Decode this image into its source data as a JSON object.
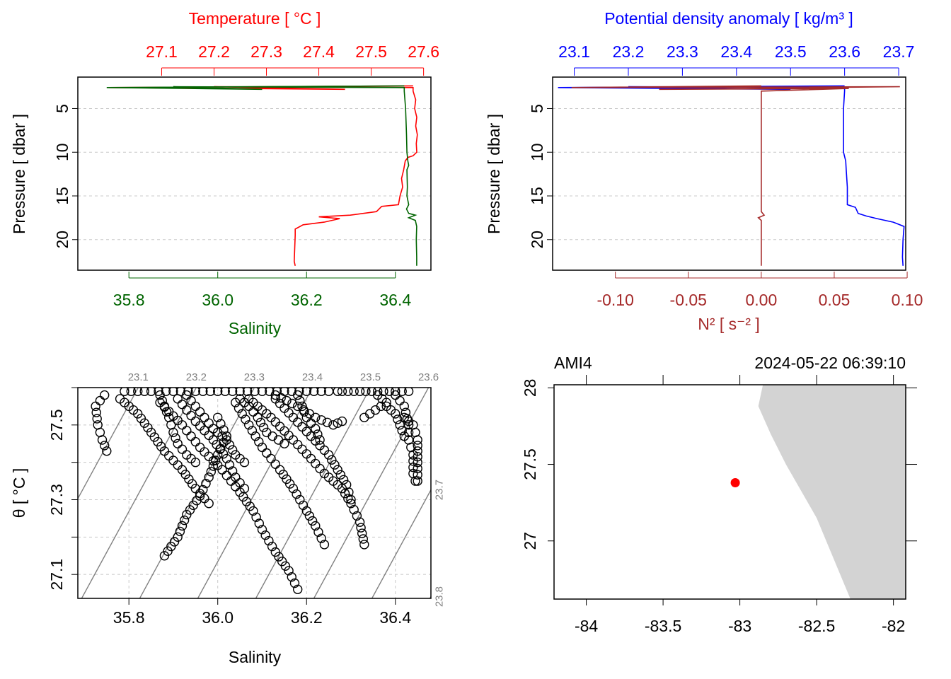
{
  "colors": {
    "temperature": "#ff0000",
    "salinity": "#006400",
    "density": "#0000ff",
    "n2": "#a52a2a",
    "grid": "#c8c8c8",
    "isopycnal": "#808080",
    "land": "#d3d3d3",
    "station": "#ff0000"
  },
  "chart_data": [
    {
      "id": "profile-ts",
      "type": "line",
      "title": "Temperature [ °C ]",
      "xlabel": "Salinity",
      "ylabel": "Pressure [ dbar ]",
      "ylim": [
        23.5,
        1.4
      ],
      "y_ticks": [
        "5",
        "10",
        "15",
        "20"
      ],
      "top_axis": {
        "label": "Temperature [ °C ]",
        "range": [
          26.94,
          27.614
        ],
        "ticks": [
          27.1,
          27.2,
          27.3,
          27.4,
          27.5,
          27.6
        ],
        "tick_labels": [
          "27.1",
          "27.2",
          "27.3",
          "27.4",
          "27.5",
          "27.6"
        ]
      },
      "bottom_axis": {
        "label": "Salinity",
        "range": [
          35.685,
          36.48
        ],
        "ticks": [
          35.8,
          36.0,
          36.2,
          36.4
        ],
        "tick_labels": [
          "35.8",
          "36.0",
          "36.2",
          "36.4"
        ]
      },
      "series": [
        {
          "name": "Temperature",
          "axis": "top",
          "color_key": "temperature",
          "points": [
            [
              27.58,
              2.4
            ],
            [
              27.0,
              2.6
            ],
            [
              27.45,
              2.8
            ],
            [
              27.2,
              2.5
            ],
            [
              27.58,
              2.6
            ],
            [
              27.58,
              3
            ],
            [
              27.585,
              4
            ],
            [
              27.583,
              5
            ],
            [
              27.587,
              6
            ],
            [
              27.585,
              7
            ],
            [
              27.588,
              8
            ],
            [
              27.586,
              9
            ],
            [
              27.587,
              10
            ],
            [
              27.58,
              10.4
            ],
            [
              27.57,
              10.6
            ],
            [
              27.565,
              11
            ],
            [
              27.562,
              12
            ],
            [
              27.558,
              13
            ],
            [
              27.56,
              14
            ],
            [
              27.555,
              15
            ],
            [
              27.552,
              16
            ],
            [
              27.52,
              16.2
            ],
            [
              27.51,
              16.8
            ],
            [
              27.46,
              17.2
            ],
            [
              27.4,
              17.4
            ],
            [
              27.44,
              17.6
            ],
            [
              27.41,
              18
            ],
            [
              27.37,
              18.3
            ],
            [
              27.355,
              18.8
            ],
            [
              27.355,
              19.5
            ],
            [
              27.354,
              21
            ],
            [
              27.353,
              22.5
            ],
            [
              27.355,
              23
            ]
          ]
        },
        {
          "name": "Salinity",
          "axis": "bottom",
          "color_key": "salinity",
          "points": [
            [
              36.42,
              2.4
            ],
            [
              35.75,
              2.6
            ],
            [
              36.1,
              2.8
            ],
            [
              35.9,
              2.5
            ],
            [
              36.42,
              2.6
            ],
            [
              36.42,
              3
            ],
            [
              36.423,
              5
            ],
            [
              36.425,
              8
            ],
            [
              36.426,
              10
            ],
            [
              36.428,
              11
            ],
            [
              36.43,
              11.5
            ],
            [
              36.426,
              12
            ],
            [
              36.427,
              14
            ],
            [
              36.426,
              15
            ],
            [
              36.43,
              16
            ],
            [
              36.425,
              16.5
            ],
            [
              36.43,
              17
            ],
            [
              36.445,
              17.2
            ],
            [
              36.43,
              17.5
            ],
            [
              36.445,
              17.8
            ],
            [
              36.448,
              18.5
            ],
            [
              36.447,
              20
            ],
            [
              36.448,
              22
            ],
            [
              36.448,
              23
            ]
          ]
        }
      ]
    },
    {
      "id": "profile-density-n2",
      "type": "line",
      "title": "Potential density anomaly [ kg/m³ ]",
      "xlabel": "N² [ s⁻² ]",
      "ylabel": "Pressure [ dbar ]",
      "ylim": [
        23.5,
        1.4
      ],
      "y_ticks": [
        "5",
        "10",
        "15",
        "20"
      ],
      "top_axis": {
        "label": "Potential density anomaly [ kg/m³ ]",
        "range": [
          23.06,
          23.713
        ],
        "ticks": [
          23.1,
          23.2,
          23.3,
          23.4,
          23.5,
          23.6,
          23.7
        ],
        "tick_labels": [
          "23.1",
          "23.2",
          "23.3",
          "23.4",
          "23.5",
          "23.6",
          "23.7"
        ]
      },
      "bottom_axis": {
        "label": "N² [ s⁻² ]",
        "range": [
          -0.143,
          0.099
        ],
        "ticks": [
          -0.1,
          -0.05,
          0.0,
          0.05,
          0.1
        ],
        "tick_labels": [
          "-0.10",
          "-0.05",
          "0.00",
          "0.05",
          "0.10"
        ]
      },
      "series": [
        {
          "name": "Potential density anomaly",
          "axis": "top",
          "color_key": "density",
          "points": [
            [
              23.6,
              2.4
            ],
            [
              23.07,
              2.6
            ],
            [
              23.5,
              2.8
            ],
            [
              23.2,
              2.5
            ],
            [
              23.6,
              2.6
            ],
            [
              23.6,
              3
            ],
            [
              23.598,
              5
            ],
            [
              23.598,
              8
            ],
            [
              23.598,
              10
            ],
            [
              23.602,
              11
            ],
            [
              23.603,
              12
            ],
            [
              23.605,
              14
            ],
            [
              23.605,
              16
            ],
            [
              23.62,
              16.3
            ],
            [
              23.625,
              17
            ],
            [
              23.64,
              17.3
            ],
            [
              23.66,
              17.6
            ],
            [
              23.69,
              18
            ],
            [
              23.71,
              18.5
            ],
            [
              23.708,
              20
            ],
            [
              23.707,
              22
            ],
            [
              23.708,
              23
            ]
          ]
        },
        {
          "name": "N²",
          "axis": "bottom",
          "color_key": "n2",
          "points": [
            [
              0.0,
              2.4
            ],
            [
              -0.13,
              2.6
            ],
            [
              0.095,
              2.5
            ],
            [
              -0.07,
              2.8
            ],
            [
              0.06,
              2.7
            ],
            [
              0.0,
              3
            ],
            [
              0.0,
              10
            ],
            [
              0.0,
              16.8
            ],
            [
              0.002,
              17.2
            ],
            [
              -0.002,
              17.5
            ],
            [
              0.0,
              17.8
            ],
            [
              0.0,
              23
            ]
          ]
        }
      ]
    },
    {
      "id": "ts-diagram",
      "type": "scatter",
      "xlabel": "Salinity",
      "ylabel": "θ [ °C ]",
      "xlim": [
        35.685,
        36.48
      ],
      "ylim": [
        27.036,
        27.6
      ],
      "x_ticks": [
        35.8,
        36.0,
        36.2,
        36.4
      ],
      "x_tick_labels": [
        "35.8",
        "36.0",
        "36.2",
        "36.4"
      ],
      "y_ticks": [
        27.1,
        27.3,
        27.5
      ],
      "y_tick_labels": [
        "27.1",
        "27.3",
        "27.5"
      ],
      "isopycnals": [
        23.1,
        23.2,
        23.3,
        23.4,
        23.5,
        23.6,
        23.7,
        23.8
      ],
      "isopycnal_labels": [
        "23.1",
        "23.2",
        "23.3",
        "23.4",
        "23.5",
        "23.6",
        "23.7",
        "23.8"
      ],
      "point_paths": [
        [
          [
            35.745,
            27.58
          ],
          [
            35.725,
            27.55
          ],
          [
            35.73,
            27.5
          ],
          [
            35.74,
            27.46
          ],
          [
            35.75,
            27.43
          ]
        ],
        [
          [
            35.78,
            27.57
          ],
          [
            35.82,
            27.53
          ],
          [
            35.85,
            27.48
          ],
          [
            35.88,
            27.43
          ],
          [
            35.92,
            27.38
          ],
          [
            35.95,
            27.33
          ],
          [
            35.98,
            27.29
          ]
        ],
        [
          [
            35.87,
            27.56
          ],
          [
            35.92,
            27.5
          ],
          [
            35.96,
            27.44
          ],
          [
            36.01,
            27.38
          ],
          [
            36.05,
            27.32
          ],
          [
            36.08,
            27.27
          ],
          [
            36.1,
            27.22
          ],
          [
            36.13,
            27.16
          ],
          [
            36.16,
            27.11
          ],
          [
            36.18,
            27.06
          ]
        ],
        [
          [
            35.91,
            27.57
          ],
          [
            35.95,
            27.51
          ],
          [
            35.99,
            27.46
          ],
          [
            36.02,
            27.41
          ],
          [
            36.04,
            27.36
          ],
          [
            36.06,
            27.33
          ]
        ],
        [
          [
            36.04,
            27.56
          ],
          [
            36.07,
            27.5
          ],
          [
            36.1,
            27.44
          ],
          [
            36.14,
            27.38
          ],
          [
            36.17,
            27.33
          ],
          [
            36.2,
            27.27
          ],
          [
            36.22,
            27.23
          ],
          [
            36.24,
            27.18
          ]
        ],
        [
          [
            36.07,
            27.57
          ],
          [
            36.12,
            27.52
          ],
          [
            36.17,
            27.46
          ],
          [
            36.21,
            27.41
          ],
          [
            36.24,
            27.37
          ],
          [
            36.28,
            27.33
          ],
          [
            36.3,
            27.29
          ],
          [
            36.32,
            27.24
          ],
          [
            36.33,
            27.18
          ]
        ],
        [
          [
            36.13,
            27.57
          ],
          [
            36.17,
            27.52
          ],
          [
            36.21,
            27.47
          ],
          [
            36.25,
            27.42
          ],
          [
            36.27,
            27.38
          ],
          [
            36.29,
            27.34
          ],
          [
            36.3,
            27.3
          ]
        ],
        [
          [
            36.0,
            27.52
          ],
          [
            36.02,
            27.47
          ],
          [
            36.0,
            27.42
          ],
          [
            35.98,
            27.36
          ],
          [
            35.96,
            27.31
          ],
          [
            35.93,
            27.26
          ],
          [
            35.91,
            27.2
          ],
          [
            35.88,
            27.15
          ]
        ],
        [
          [
            36.4,
            27.58
          ],
          [
            36.42,
            27.55
          ],
          [
            36.43,
            27.5
          ],
          [
            36.43,
            27.46
          ],
          [
            36.44,
            27.42
          ],
          [
            36.44,
            27.37
          ],
          [
            36.445,
            27.35
          ]
        ],
        [
          [
            36.13,
            27.58
          ],
          [
            36.18,
            27.55
          ],
          [
            36.22,
            27.52
          ],
          [
            36.26,
            27.5
          ],
          [
            36.28,
            27.51
          ]
        ],
        [
          [
            36.36,
            27.58
          ],
          [
            36.38,
            27.56
          ],
          [
            36.33,
            27.52
          ]
        ],
        [
          [
            35.79,
            27.59
          ],
          [
            35.85,
            27.59
          ],
          [
            35.9,
            27.59
          ],
          [
            35.95,
            27.59
          ],
          [
            36.0,
            27.59
          ],
          [
            36.05,
            27.59
          ],
          [
            36.1,
            27.59
          ],
          [
            36.15,
            27.59
          ],
          [
            36.2,
            27.59
          ],
          [
            36.25,
            27.59
          ],
          [
            36.27,
            27.59
          ]
        ],
        [
          [
            35.87,
            27.58
          ],
          [
            35.88,
            27.55
          ],
          [
            35.89,
            27.52
          ],
          [
            35.9,
            27.48
          ],
          [
            35.91,
            27.45
          ],
          [
            35.93,
            27.42
          ],
          [
            35.95,
            27.4
          ]
        ],
        [
          [
            35.93,
            27.58
          ],
          [
            35.95,
            27.55
          ],
          [
            35.97,
            27.52
          ],
          [
            35.99,
            27.49
          ],
          [
            36.02,
            27.46
          ],
          [
            36.04,
            27.42
          ],
          [
            36.06,
            27.4
          ]
        ],
        [
          [
            36.18,
            27.58
          ],
          [
            36.19,
            27.55
          ],
          [
            36.2,
            27.52
          ],
          [
            36.22,
            27.49
          ],
          [
            36.23,
            27.46
          ]
        ],
        [
          [
            36.05,
            27.57
          ],
          [
            36.07,
            27.55
          ],
          [
            36.09,
            27.52
          ],
          [
            36.11,
            27.48
          ],
          [
            36.15,
            27.45
          ]
        ],
        [
          [
            36.38,
            27.55
          ],
          [
            36.4,
            27.53
          ],
          [
            36.41,
            27.5
          ],
          [
            36.42,
            27.47
          ]
        ],
        [
          [
            36.42,
            27.52
          ],
          [
            36.44,
            27.5
          ],
          [
            36.45,
            27.46
          ],
          [
            36.45,
            27.4
          ],
          [
            36.45,
            27.35
          ]
        ],
        [
          [
            36.28,
            27.59
          ],
          [
            36.32,
            27.59
          ],
          [
            36.36,
            27.59
          ],
          [
            36.4,
            27.59
          ],
          [
            36.43,
            27.59
          ]
        ]
      ]
    },
    {
      "id": "station-map",
      "type": "scatter",
      "station": "AMI4",
      "datetime": "2024-05-22 06:39:10",
      "xlim": [
        -84.21,
        -81.92
      ],
      "ylim": [
        26.62,
        28.02
      ],
      "x_ticks": [
        -84,
        -83.5,
        -83,
        -82.5,
        -82
      ],
      "x_tick_labels": [
        "-84",
        "-83.5",
        "-83",
        "-82.5",
        "-82"
      ],
      "y_ticks": [
        27,
        27.5,
        28
      ],
      "y_tick_labels": [
        "27",
        "27.5",
        "28"
      ],
      "station_lonlat": [
        -83.03,
        27.38
      ],
      "coast": [
        [
          -82.85,
          28.02
        ],
        [
          -82.88,
          27.88
        ],
        [
          -82.8,
          27.7
        ],
        [
          -82.7,
          27.5
        ],
        [
          -82.5,
          27.15
        ],
        [
          -82.28,
          26.62
        ],
        [
          -81.92,
          26.62
        ],
        [
          -81.92,
          28.02
        ]
      ]
    }
  ]
}
